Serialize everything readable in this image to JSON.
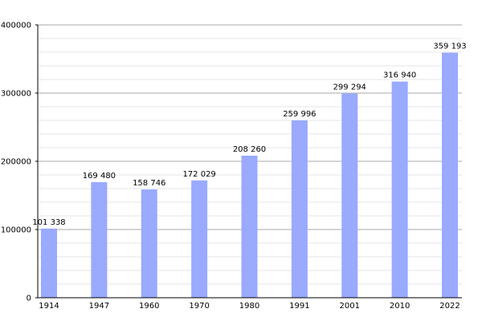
{
  "chart_data": {
    "type": "bar",
    "categories": [
      "1914",
      "1947",
      "1960",
      "1970",
      "1980",
      "1991",
      "2001",
      "2010",
      "2022"
    ],
    "values": [
      101338,
      169480,
      158746,
      172029,
      208260,
      259996,
      299294,
      316940,
      359193
    ],
    "value_labels": [
      "101 338",
      "169 480",
      "158 746",
      "172 029",
      "208 260",
      "259 996",
      "299 294",
      "316 940",
      "359 193"
    ],
    "ylim": [
      0,
      400000
    ],
    "yticks": [
      0,
      100000,
      200000,
      300000,
      400000
    ],
    "ytick_labels": [
      "0",
      "100000",
      "200000",
      "300000",
      "400000"
    ],
    "minor_step": 20000,
    "grid": true,
    "bar_color": "#99aaff",
    "major_grid_color": "#aaaaaa",
    "minor_grid_color": "#e4e4e4",
    "title": "",
    "xlabel": "",
    "ylabel": ""
  }
}
